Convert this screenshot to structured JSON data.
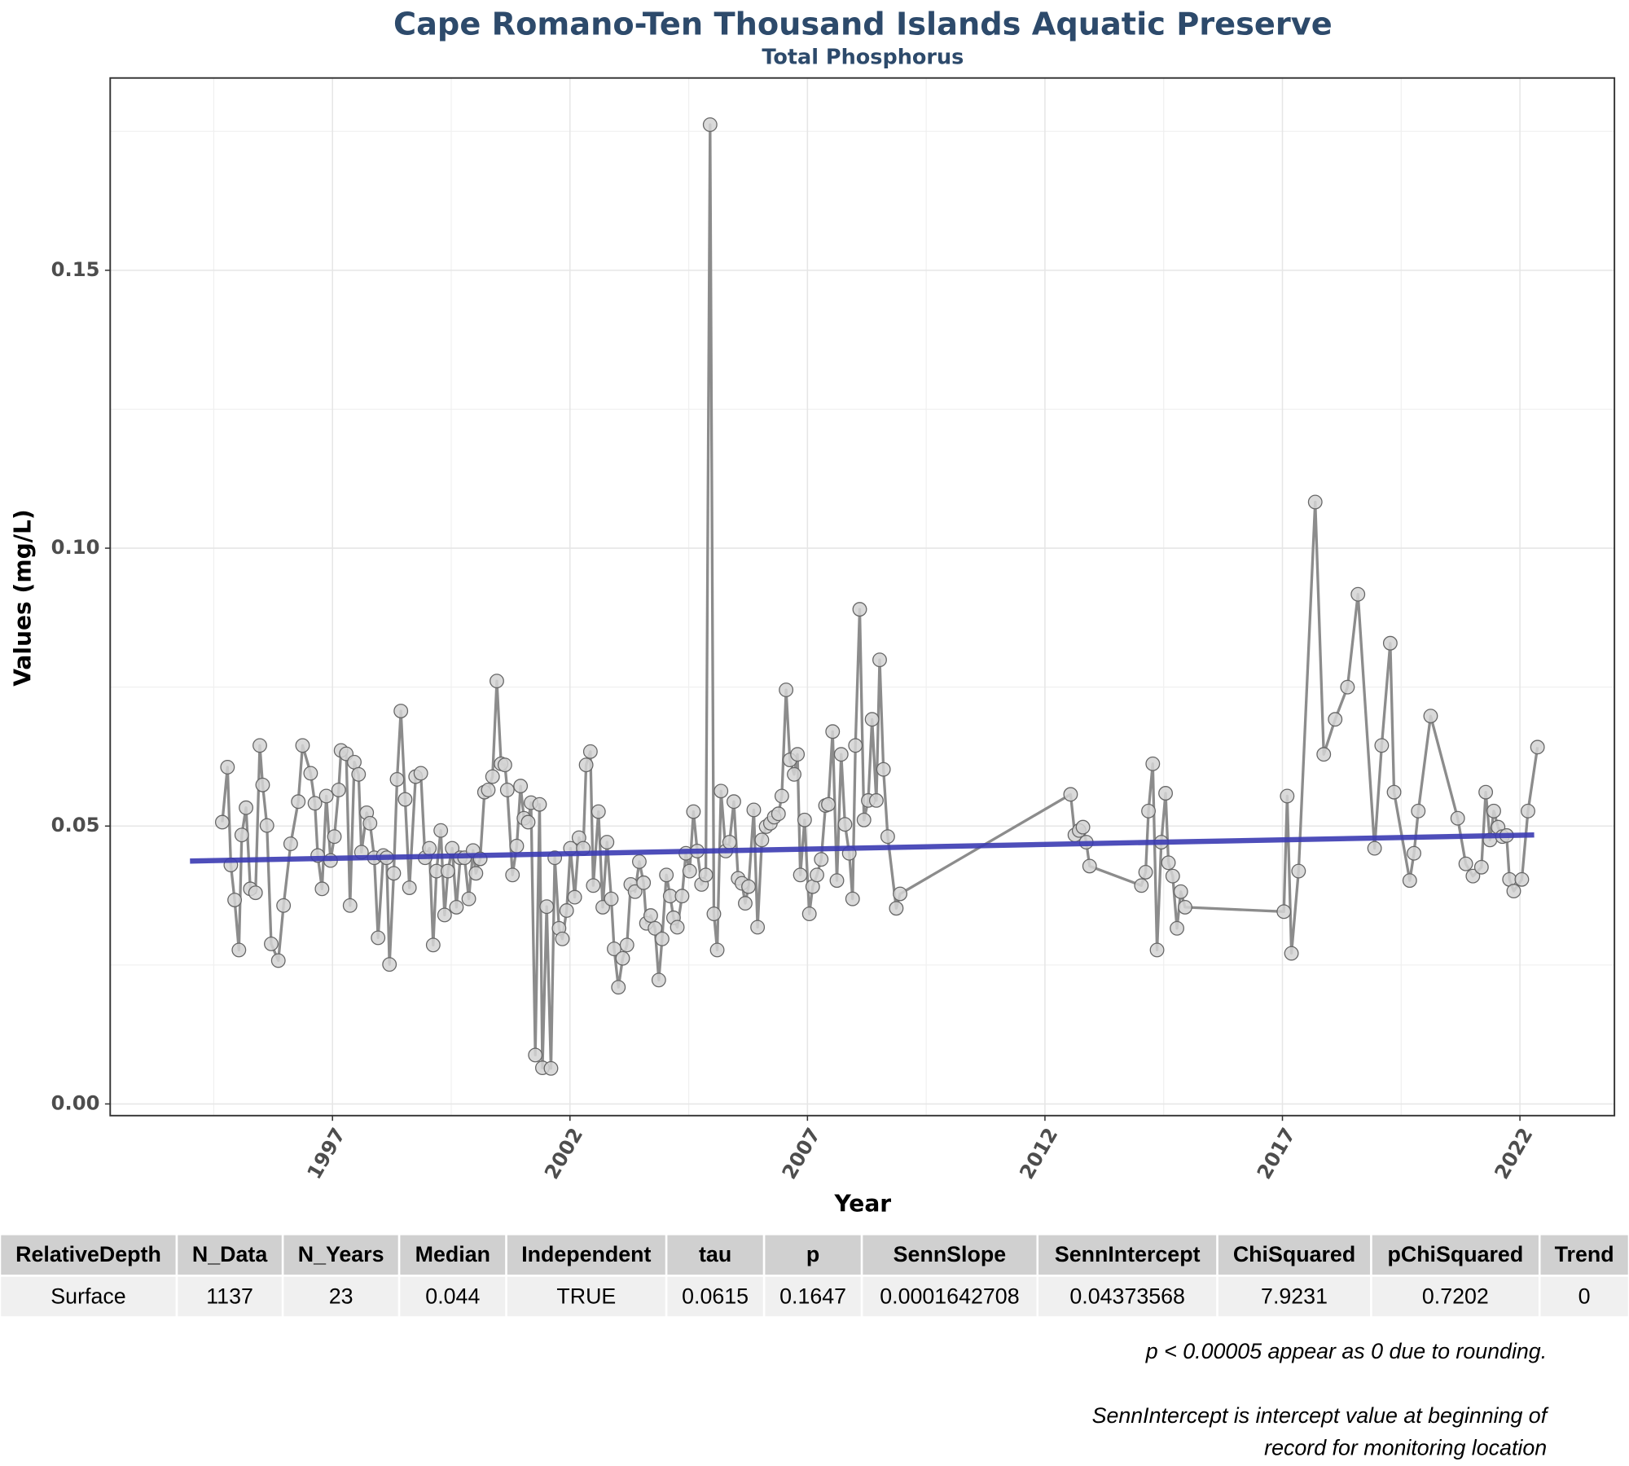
{
  "chart_data": {
    "type": "line",
    "title": "Cape Romano-Ten Thousand Islands Aquatic Preserve",
    "subtitle": "Total Phosphorus",
    "x_label": "Year",
    "y_label": "Values (mg/L)",
    "xlim": [
      1992.32,
      2023.99
    ],
    "ylim": [
      -0.0021,
      0.1846
    ],
    "xticks": [
      1997,
      2002,
      2007,
      2012,
      2017,
      2022
    ],
    "yticks": [
      {
        "value": 0,
        "label": "0.00"
      },
      0.05,
      {
        "value": 0.1,
        "label": "0.10"
      },
      0.15
    ],
    "grid": true,
    "series": [
      {
        "color": "#8c8c8c",
        "marker_fill": "#d3d3d3",
        "x": [
          1994.68,
          1994.79,
          1994.86,
          1994.94,
          1995.03,
          1995.09,
          1995.18,
          1995.27,
          1995.38,
          1995.47,
          1995.53,
          1995.62,
          1995.71,
          1995.86,
          1995.97,
          1996.12,
          1996.28,
          1996.37,
          1996.54,
          1996.63,
          1996.69,
          1996.78,
          1996.87,
          1996.96,
          1997.04,
          1997.13,
          1997.18,
          1997.29,
          1997.37,
          1997.46,
          1997.55,
          1997.61,
          1997.72,
          1997.79,
          1997.88,
          1997.96,
          1998.07,
          1998.14,
          1998.2,
          1998.29,
          1998.36,
          1998.44,
          1998.53,
          1998.62,
          1998.75,
          1998.86,
          1998.95,
          1999.04,
          1999.12,
          1999.19,
          1999.28,
          1999.36,
          1999.43,
          1999.52,
          1999.61,
          1999.69,
          1999.78,
          1999.87,
          1999.96,
          2000.02,
          2000.11,
          2000.2,
          2000.28,
          2000.37,
          2000.46,
          2000.55,
          2000.63,
          2000.68,
          2000.79,
          2000.88,
          2000.96,
          2001.03,
          2001.12,
          2001.18,
          2001.27,
          2001.36,
          2001.42,
          2001.51,
          2001.6,
          2001.68,
          2001.77,
          2001.84,
          2001.93,
          2002.01,
          2002.1,
          2002.19,
          2002.28,
          2002.34,
          2002.43,
          2002.49,
          2002.6,
          2002.69,
          2002.78,
          2002.87,
          2002.93,
          2003.02,
          2003.11,
          2003.2,
          2003.28,
          2003.37,
          2003.46,
          2003.55,
          2003.61,
          2003.7,
          2003.79,
          2003.87,
          2003.94,
          2004.03,
          2004.11,
          2004.18,
          2004.26,
          2004.36,
          2004.44,
          2004.52,
          2004.6,
          2004.68,
          2004.77,
          2004.86,
          2004.95,
          2005.03,
          2005.1,
          2005.18,
          2005.28,
          2005.36,
          2005.45,
          2005.54,
          2005.62,
          2005.69,
          2005.76,
          2005.87,
          2005.95,
          2006.04,
          2006.13,
          2006.22,
          2006.3,
          2006.39,
          2006.46,
          2006.55,
          2006.63,
          2006.72,
          2006.79,
          2006.85,
          2006.94,
          2007.04,
          2007.11,
          2007.2,
          2007.29,
          2007.38,
          2007.44,
          2007.53,
          2007.62,
          2007.71,
          2007.79,
          2007.88,
          2007.95,
          2008.01,
          2008.1,
          2008.19,
          2008.28,
          2008.36,
          2008.45,
          2008.52,
          2008.6,
          2008.69,
          2008.87,
          2008.95,
          2012.54,
          2012.63,
          2012.72,
          2012.8,
          2012.87,
          2012.94,
          2014.03,
          2014.12,
          2014.18,
          2014.27,
          2014.36,
          2014.45,
          2014.54,
          2014.6,
          2014.69,
          2014.78,
          2014.86,
          2014.95,
          2017.03,
          2017.1,
          2017.19,
          2017.34,
          2017.69,
          2017.87,
          2018.11,
          2018.37,
          2018.59,
          2018.94,
          2019.09,
          2019.27,
          2019.35,
          2019.68,
          2019.77,
          2019.86,
          2020.12,
          2020.69,
          2020.86,
          2021.01,
          2021.19,
          2021.28,
          2021.37,
          2021.45,
          2021.54,
          2021.63,
          2021.72,
          2021.78,
          2021.87,
          2022.04,
          2022.17,
          2022.37
        ],
        "values": [
          0.0507,
          0.0606,
          0.043,
          0.0367,
          0.0277,
          0.0484,
          0.0533,
          0.0387,
          0.038,
          0.0645,
          0.0574,
          0.0501,
          0.0288,
          0.0258,
          0.0357,
          0.0468,
          0.0544,
          0.0645,
          0.0595,
          0.0541,
          0.0447,
          0.0387,
          0.0554,
          0.0438,
          0.0481,
          0.0565,
          0.0636,
          0.063,
          0.0357,
          0.0615,
          0.0593,
          0.0453,
          0.0524,
          0.0505,
          0.0443,
          0.0299,
          0.0447,
          0.0443,
          0.0251,
          0.0415,
          0.0584,
          0.0707,
          0.0548,
          0.0389,
          0.0589,
          0.0595,
          0.0443,
          0.046,
          0.0286,
          0.0419,
          0.0492,
          0.034,
          0.0419,
          0.046,
          0.0354,
          0.0443,
          0.0443,
          0.0369,
          0.0456,
          0.0415,
          0.0441,
          0.0561,
          0.0565,
          0.0589,
          0.0761,
          0.0612,
          0.061,
          0.0565,
          0.0412,
          0.0464,
          0.0572,
          0.0514,
          0.0507,
          0.0542,
          0.0088,
          0.0539,
          0.0065,
          0.0355,
          0.0064,
          0.0443,
          0.0316,
          0.0297,
          0.0348,
          0.046,
          0.0372,
          0.0479,
          0.046,
          0.061,
          0.0634,
          0.0393,
          0.0526,
          0.0354,
          0.0471,
          0.0369,
          0.0279,
          0.021,
          0.0262,
          0.0286,
          0.0395,
          0.0382,
          0.0436,
          0.0398,
          0.0325,
          0.0339,
          0.0316,
          0.0223,
          0.0297,
          0.0412,
          0.0374,
          0.0335,
          0.0318,
          0.0374,
          0.0451,
          0.0419,
          0.0526,
          0.0455,
          0.0395,
          0.0412,
          0.1762,
          0.0342,
          0.0277,
          0.0563,
          0.0455,
          0.0471,
          0.0544,
          0.0406,
          0.0397,
          0.0361,
          0.0391,
          0.0529,
          0.0318,
          0.0475,
          0.0499,
          0.0505,
          0.0516,
          0.0522,
          0.0554,
          0.0745,
          0.0619,
          0.0593,
          0.0629,
          0.0412,
          0.0511,
          0.0342,
          0.0391,
          0.0412,
          0.044,
          0.0537,
          0.0539,
          0.067,
          0.0402,
          0.0629,
          0.0503,
          0.0451,
          0.0369,
          0.0645,
          0.089,
          0.0511,
          0.0546,
          0.0692,
          0.0546,
          0.0799,
          0.0602,
          0.0481,
          0.0352,
          0.0378,
          0.0557,
          0.0484,
          0.0492,
          0.0498,
          0.0471,
          0.0428,
          0.0393,
          0.0417,
          0.0527,
          0.0612,
          0.0277,
          0.0471,
          0.0559,
          0.0434,
          0.041,
          0.0316,
          0.0382,
          0.0354,
          0.0346,
          0.0554,
          0.0271,
          0.0419,
          0.1083,
          0.0629,
          0.0692,
          0.075,
          0.0917,
          0.046,
          0.0645,
          0.0829,
          0.0561,
          0.0402,
          0.0451,
          0.0527,
          0.0698,
          0.0514,
          0.0432,
          0.041,
          0.0426,
          0.0561,
          0.0475,
          0.0527,
          0.0498,
          0.0481,
          0.0483,
          0.0404,
          0.0383,
          0.0404,
          0.0527,
          0.0642
        ]
      },
      {
        "color": "#3b3bb3",
        "x": [
          1994.0,
          2022.3
        ],
        "values": [
          0.0437,
          0.0484
        ]
      }
    ]
  },
  "table": {
    "header": [
      "RelativeDepth",
      "N_Data",
      "N_Years",
      "Median",
      "Independent",
      "tau",
      "p",
      "SennSlope",
      "SennIntercept",
      "ChiSquared",
      "pChiSquared",
      "Trend"
    ],
    "rows": [
      [
        "Surface",
        "1137",
        "23",
        "0.044",
        "TRUE",
        "0.0615",
        "0.1647",
        "0.0001642708",
        "0.04373568",
        "7.9231",
        "0.7202",
        "0"
      ]
    ]
  },
  "notes": [
    "p < 0.00005 appear as 0 due to rounding.",
    "SennIntercept is intercept value at beginning of",
    "record for monitoring location"
  ]
}
